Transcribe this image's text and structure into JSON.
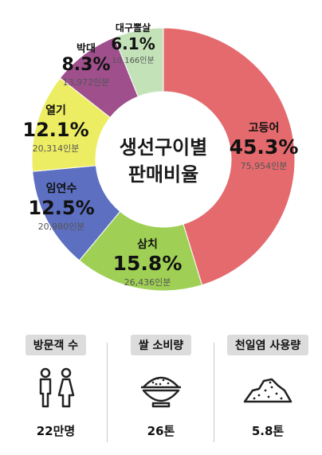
{
  "chart_data": {
    "type": "pie",
    "title": "생선구이별\n판매비율",
    "title_lines": [
      "생선구이별",
      "판매비율"
    ],
    "unit": "인분",
    "slices": [
      {
        "name": "고등어",
        "percent": 45.3,
        "percent_label": "45.3%",
        "value": 75954,
        "value_label": "75,954인분",
        "color": "#e46a6e"
      },
      {
        "name": "삼치",
        "percent": 15.8,
        "percent_label": "15.8%",
        "value": 26436,
        "value_label": "26,436인분",
        "color": "#9fd055"
      },
      {
        "name": "임연수",
        "percent": 12.5,
        "percent_label": "12.5%",
        "value": 20980,
        "value_label": "20,980인분",
        "color": "#5d6fc0"
      },
      {
        "name": "열기",
        "percent": 12.1,
        "percent_label": "12.1%",
        "value": 20314,
        "value_label": "20,314인분",
        "color": "#eded63"
      },
      {
        "name": "박대",
        "percent": 8.3,
        "percent_label": "8.3%",
        "value": 13972,
        "value_label": "13,972인분",
        "color": "#9e4f8c"
      },
      {
        "name": "대구뽈살",
        "percent": 6.1,
        "percent_label": "6.1%",
        "value": 10166,
        "value_label": "10,166인분",
        "color": "#c3e2b8"
      }
    ]
  },
  "stats": [
    {
      "label": "방문객 수",
      "value": "22만명",
      "icon": "people-icon"
    },
    {
      "label": "쌀 소비량",
      "value": "26톤",
      "icon": "rice-bowl-icon"
    },
    {
      "label": "천일염 사용량",
      "value": "5.8톤",
      "icon": "salt-pile-icon"
    }
  ]
}
